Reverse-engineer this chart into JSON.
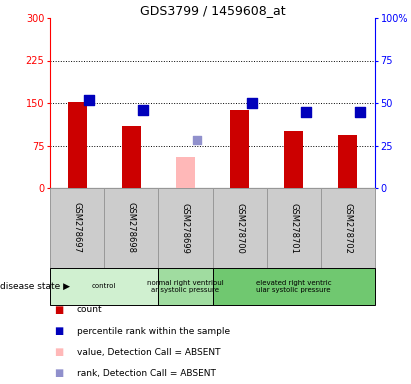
{
  "title": "GDS3799 / 1459608_at",
  "samples": [
    "GSM278697",
    "GSM278698",
    "GSM278699",
    "GSM278700",
    "GSM278701",
    "GSM278702"
  ],
  "count_values": [
    152,
    110,
    null,
    138,
    100,
    93
  ],
  "count_absent": [
    null,
    null,
    55,
    null,
    null,
    null
  ],
  "percentile_values": [
    52,
    46,
    null,
    50,
    45,
    45
  ],
  "percentile_absent": [
    null,
    null,
    28,
    null,
    null,
    null
  ],
  "left_ylim": [
    0,
    300
  ],
  "right_ylim": [
    0,
    100
  ],
  "left_yticks": [
    0,
    75,
    150,
    225,
    300
  ],
  "right_yticks": [
    0,
    25,
    50,
    75,
    100
  ],
  "right_yticklabels": [
    "0",
    "25",
    "50",
    "75",
    "100%"
  ],
  "disease_groups": [
    {
      "label": "control",
      "start": 0,
      "end": 1,
      "color": "#d0f0d0"
    },
    {
      "label": "normal right ventrioul\nar systolic pressure",
      "start": 2,
      "end": 2,
      "color": "#a0dca0"
    },
    {
      "label": "elevated right ventric\nular systolic pressure",
      "start": 3,
      "end": 5,
      "color": "#70c870"
    }
  ],
  "bar_color_red": "#cc0000",
  "bar_color_pink": "#ffb8b8",
  "dot_color_blue": "#0000bb",
  "dot_color_lightblue": "#9090cc",
  "sample_box_color": "#cccccc",
  "sample_box_border": "#999999",
  "bar_width": 0.35,
  "dot_size": 45,
  "legend_items": [
    {
      "color": "#cc0000",
      "label": "count"
    },
    {
      "color": "#0000bb",
      "label": "percentile rank within the sample"
    },
    {
      "color": "#ffb8b8",
      "label": "value, Detection Call = ABSENT"
    },
    {
      "color": "#9090cc",
      "label": "rank, Detection Call = ABSENT"
    }
  ]
}
